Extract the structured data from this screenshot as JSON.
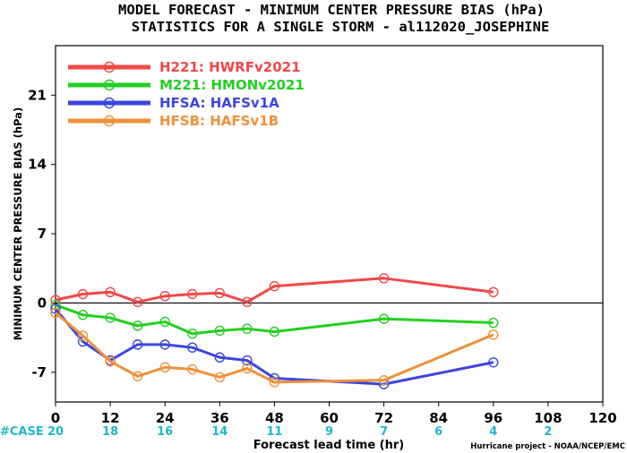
{
  "chart_data": {
    "type": "line",
    "title": "MODEL FORECAST - MINIMUM CENTER PRESSURE BIAS (hPa)",
    "subtitle": "STATISTICS FOR A SINGLE STORM - al112020_JOSEPHINE",
    "xlabel": "Forecast lead time (hr)",
    "ylabel": "MINIMUM CENTER PRESSURE BIAS (hPa)",
    "xlim": [
      0,
      120
    ],
    "ylim": [
      -10,
      26
    ],
    "x_ticks": [
      "0",
      "12",
      "24",
      "36",
      "48",
      "60",
      "72",
      "84",
      "96",
      "108",
      "120"
    ],
    "y_ticks": [
      "-7",
      "0",
      "7",
      "14",
      "21"
    ],
    "y_tick_values": [
      -7,
      0,
      7,
      14,
      21
    ],
    "x_tick_values": [
      0,
      12,
      24,
      36,
      48,
      60,
      72,
      84,
      96,
      108,
      120
    ],
    "legend_position": "top-left",
    "zero_line": true,
    "case_label": "#CASE",
    "case_counts": [
      {
        "x": 0,
        "label": "20"
      },
      {
        "x": 12,
        "label": "18"
      },
      {
        "x": 24,
        "label": "16"
      },
      {
        "x": 36,
        "label": "14"
      },
      {
        "x": 48,
        "label": "11"
      },
      {
        "x": 60,
        "label": "9"
      },
      {
        "x": 72,
        "label": "7"
      },
      {
        "x": 84,
        "label": "6"
      },
      {
        "x": 96,
        "label": "4"
      },
      {
        "x": 108,
        "label": "2"
      }
    ],
    "credit": "Hurricane project - NOAA/NCEP/EMC",
    "series": [
      {
        "name": "H221: HWRFv2021",
        "color": "#f04848",
        "x": [
          0,
          6,
          12,
          18,
          24,
          30,
          36,
          42,
          48,
          72,
          96
        ],
        "y": [
          0.3,
          0.9,
          1.1,
          0.1,
          0.7,
          0.9,
          1.0,
          0.1,
          1.7,
          2.5,
          1.1
        ]
      },
      {
        "name": "M221: HMONv2021",
        "color": "#22d022",
        "x": [
          0,
          6,
          12,
          18,
          24,
          30,
          36,
          42,
          48,
          72,
          96
        ],
        "y": [
          -0.2,
          -1.2,
          -1.5,
          -2.3,
          -1.9,
          -3.1,
          -2.8,
          -2.6,
          -2.9,
          -1.6,
          -2.0
        ]
      },
      {
        "name": "HFSA: HAFSv1A",
        "color": "#3a46e0",
        "x": [
          0,
          6,
          12,
          18,
          24,
          30,
          36,
          42,
          48,
          72,
          96
        ],
        "y": [
          -0.6,
          -3.9,
          -5.8,
          -4.2,
          -4.2,
          -4.5,
          -5.5,
          -5.8,
          -7.6,
          -8.2,
          -6.0
        ]
      },
      {
        "name": "HFSB: HAFSv1B",
        "color": "#f0903a",
        "x": [
          0,
          6,
          12,
          18,
          24,
          30,
          36,
          42,
          48,
          72,
          96
        ],
        "y": [
          -1.0,
          -3.3,
          -5.9,
          -7.4,
          -6.5,
          -6.7,
          -7.5,
          -6.6,
          -8.0,
          -7.8,
          -3.2
        ]
      }
    ]
  }
}
